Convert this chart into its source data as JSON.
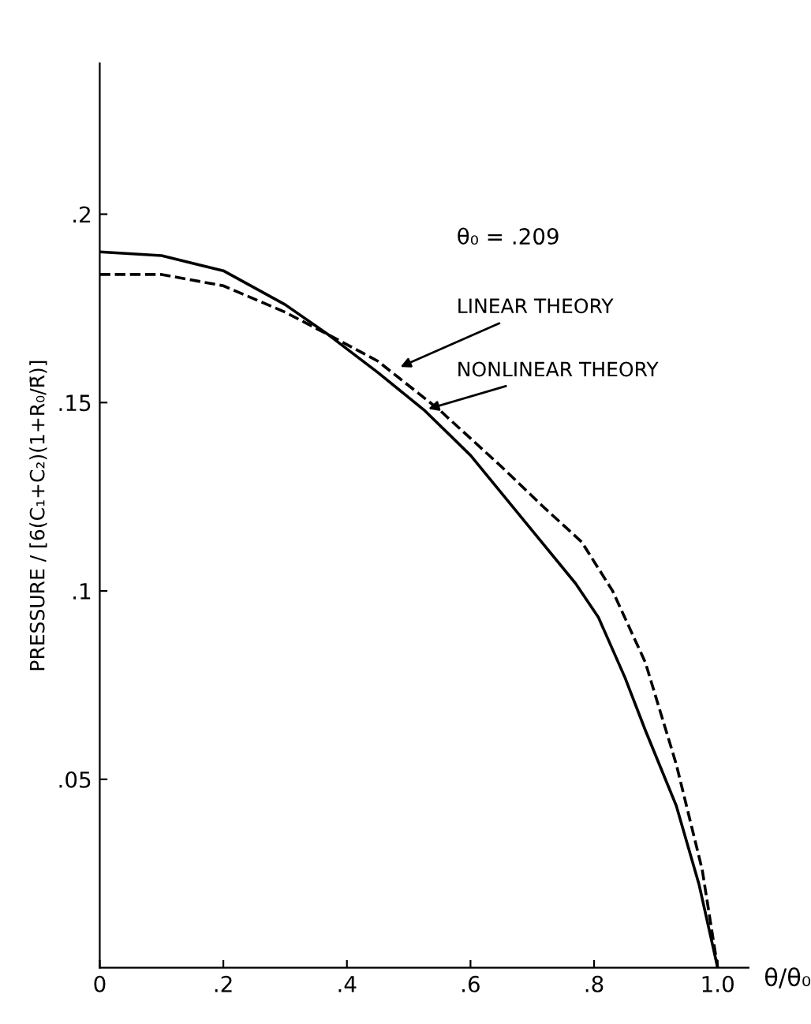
{
  "chart_data": {
    "type": "line",
    "xlabel": "θ/θ₀",
    "ylabel": "PRESSURE / [6(C₁+C₂)(1+R₀/R̄)]",
    "annotations": [
      "θ₀ = .209",
      {
        "text": "LINEAR THEORY",
        "x": 0.48,
        "y": 0.159
      },
      {
        "text": "NONLINEAR THEORY",
        "x": 0.525,
        "y": 0.148
      }
    ],
    "xlim": [
      0,
      1.05
    ],
    "ylim": [
      0,
      0.24
    ],
    "xticks": [
      {
        "value": 0,
        "label": "0"
      },
      {
        "value": 0.2,
        "label": ".2"
      },
      {
        "value": 0.4,
        "label": ".4"
      },
      {
        "value": 0.6,
        "label": ".6"
      },
      {
        "value": 0.8,
        "label": ".8"
      },
      {
        "value": 1.0,
        "label": "1.0"
      }
    ],
    "yticks": [
      {
        "value": 0.05,
        "label": ".05"
      },
      {
        "value": 0.1,
        "label": ".1"
      },
      {
        "value": 0.15,
        "label": ".15"
      },
      {
        "value": 0.2,
        "label": ".2"
      }
    ],
    "grid": false,
    "series": [
      {
        "color": "#000000",
        "line_style": "dashed",
        "x": [
          0,
          0.1,
          0.2,
          0.3,
          0.37,
          0.45,
          0.55,
          0.65,
          0.72,
          0.78,
          0.83,
          0.883,
          0.933,
          0.975,
          1.0
        ],
        "values": [
          0.184,
          0.184,
          0.181,
          0.174,
          0.168,
          0.161,
          0.148,
          0.133,
          0.122,
          0.113,
          0.1,
          0.081,
          0.054,
          0.026,
          0
        ]
      },
      {
        "color": "#000000",
        "line_style": "solid",
        "x": [
          0,
          0.1,
          0.2,
          0.3,
          0.37,
          0.45,
          0.525,
          0.6,
          0.7,
          0.77,
          0.807,
          0.85,
          0.883,
          0.933,
          0.97,
          1.0
        ],
        "values": [
          0.19,
          0.189,
          0.185,
          0.176,
          0.168,
          0.158,
          0.148,
          0.136,
          0.116,
          0.102,
          0.093,
          0.077,
          0.063,
          0.043,
          0.022,
          0
        ]
      }
    ]
  }
}
